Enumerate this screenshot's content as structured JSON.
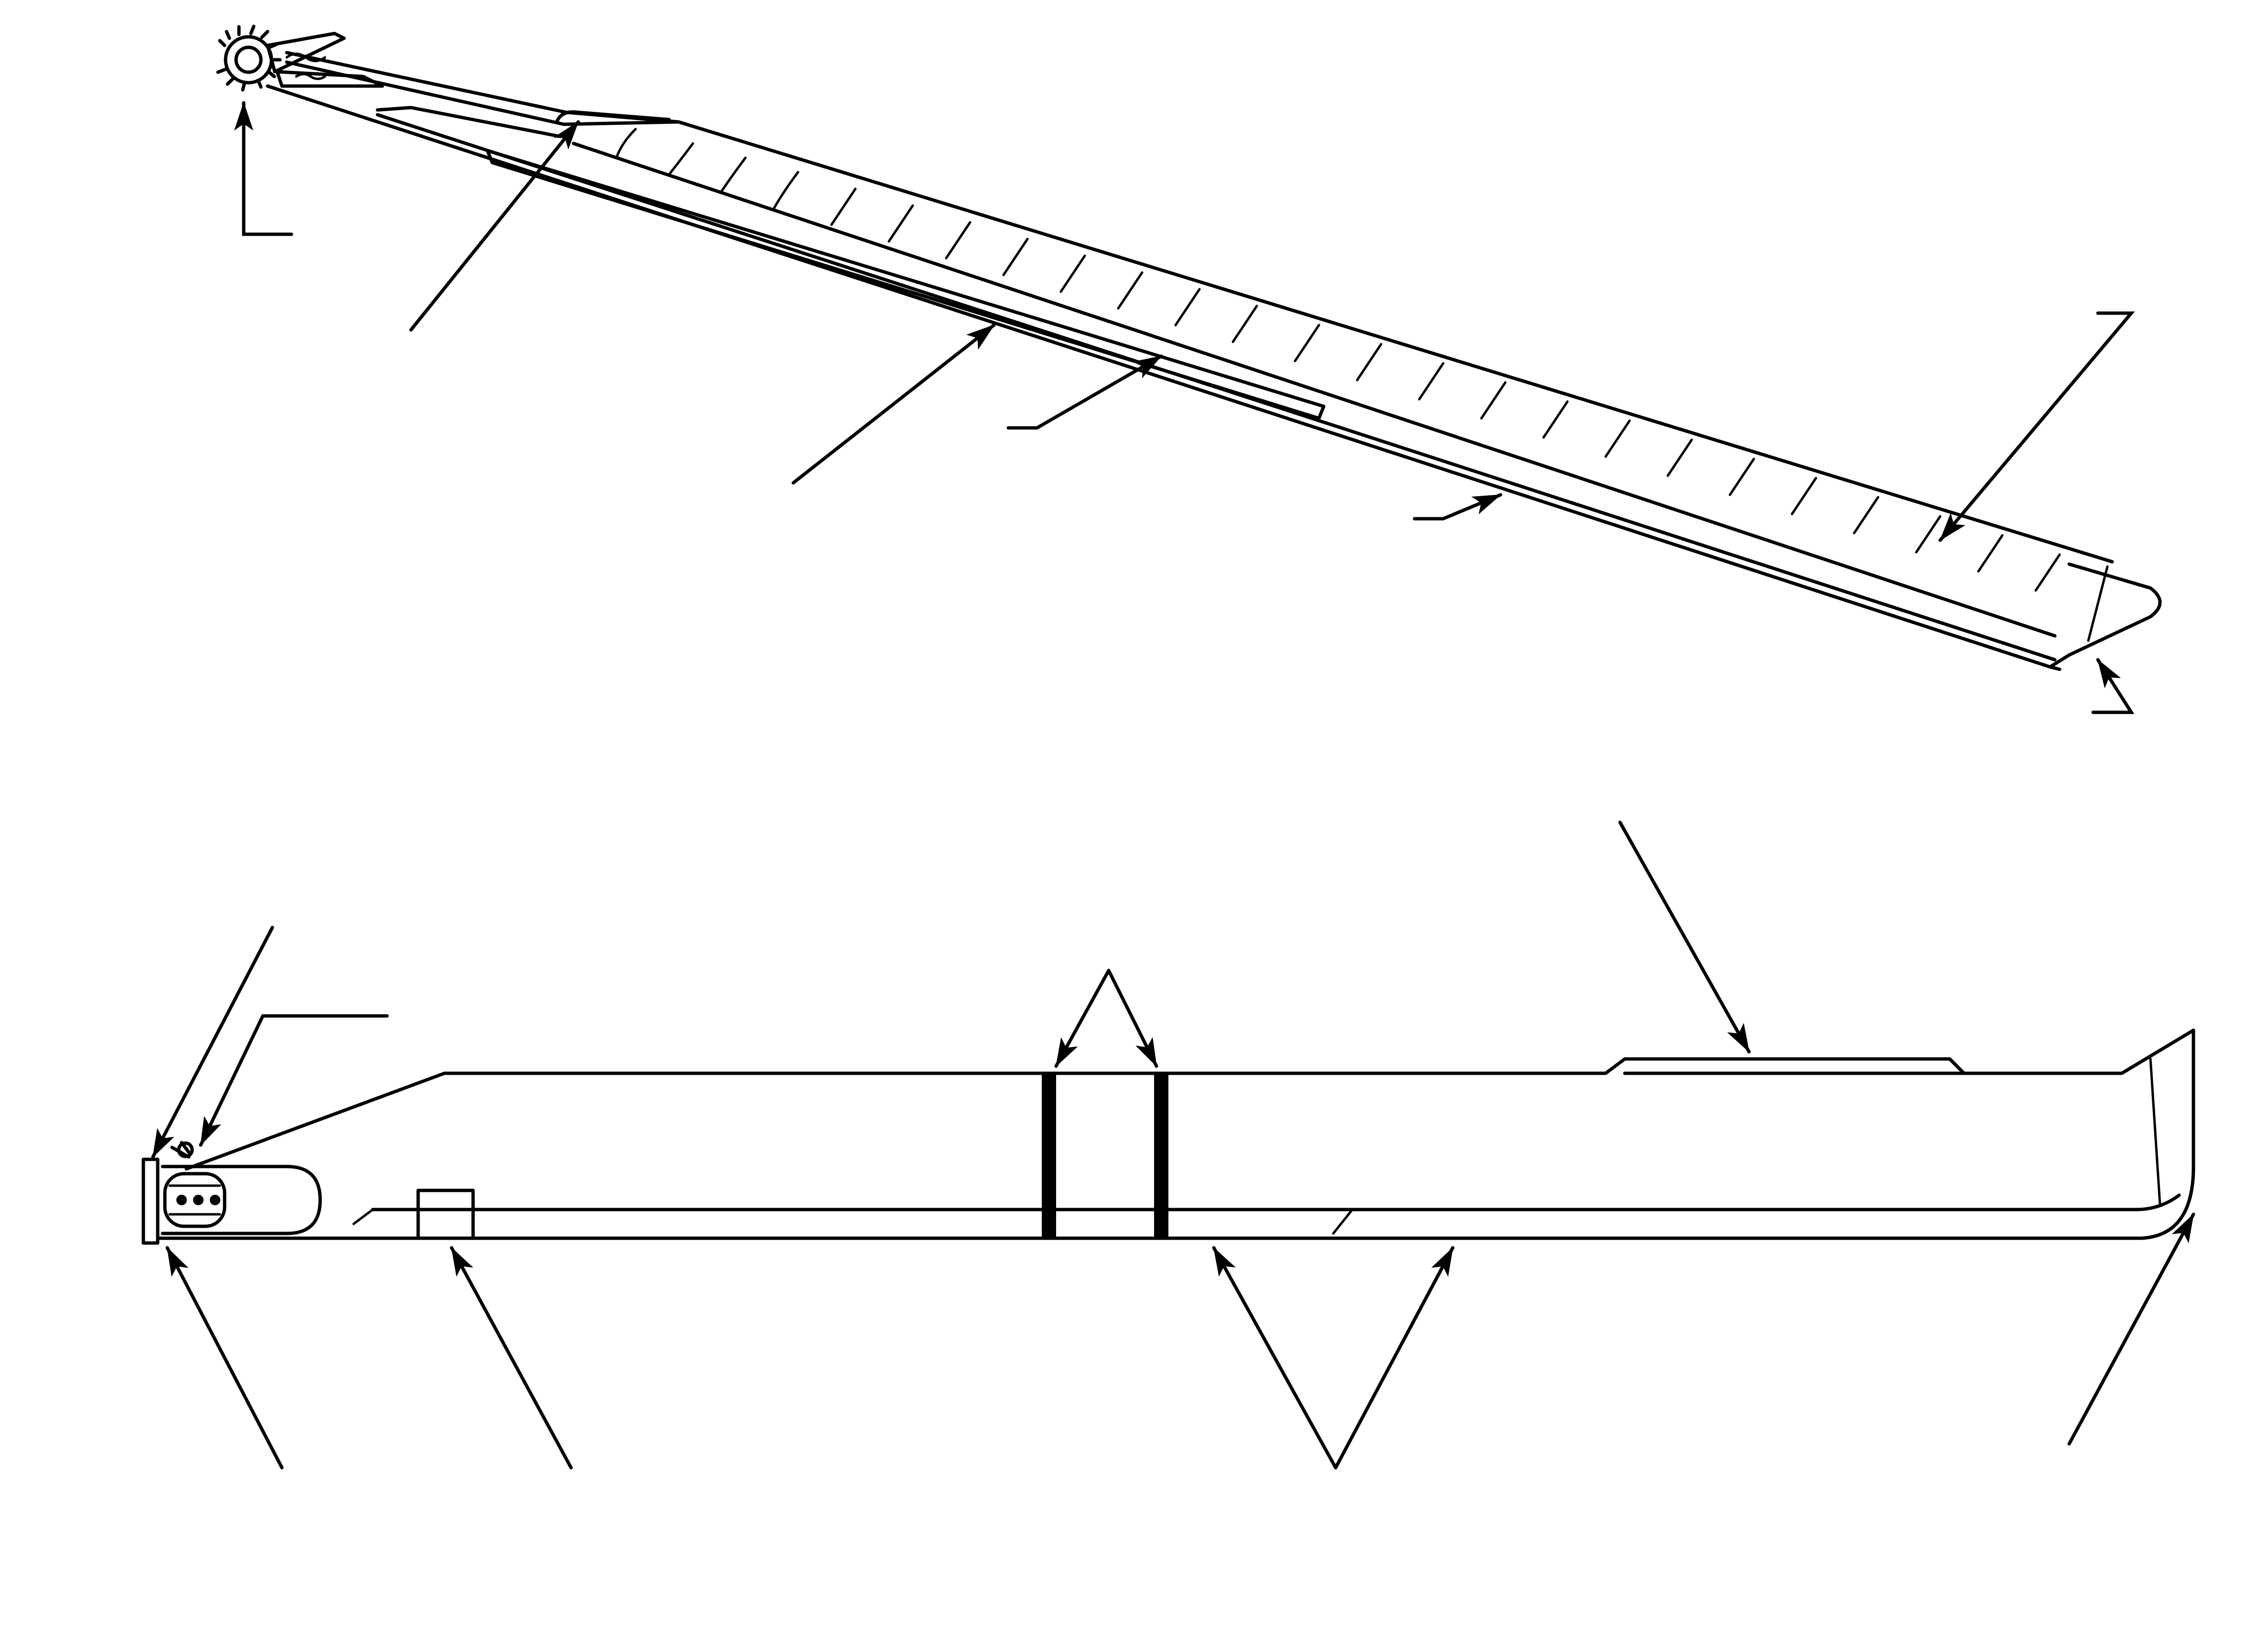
{
  "figure": {
    "title": "",
    "views": [
      {
        "id": "top-view",
        "description_shown": false
      },
      {
        "id": "side-view",
        "description_shown": false
      }
    ],
    "callout_labels": []
  },
  "colors": {
    "ink": "#000000",
    "background": "#ffffff"
  }
}
